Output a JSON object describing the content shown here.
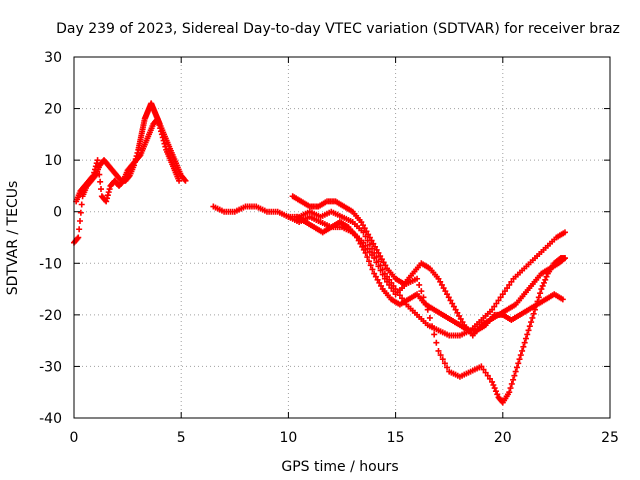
{
  "chart_data": {
    "type": "scatter",
    "title": "Day 239 of 2023, Sidereal Day-to-day VTEC variation (SDTVAR) for receiver braz",
    "xlabel": "GPS time / hours",
    "ylabel": "SDTVAR / TECUs",
    "xlim": [
      0,
      25
    ],
    "ylim": [
      -40,
      30
    ],
    "xticks": [
      0,
      5,
      10,
      15,
      20,
      25
    ],
    "yticks": [
      -40,
      -30,
      -20,
      -10,
      0,
      10,
      20,
      30
    ],
    "grid": true,
    "marker": "+",
    "color": "#ff0000",
    "series": [
      {
        "name": "s1",
        "x": [
          0,
          0.2,
          0.4,
          0.6,
          0.8,
          1.0,
          1.2,
          1.4,
          1.6,
          1.8,
          2.0,
          2.2,
          2.4,
          2.6,
          2.8,
          3.0,
          3.1,
          3.2,
          3.3,
          3.4,
          3.5,
          3.6,
          3.7,
          3.8,
          3.9,
          4.0,
          4.2,
          4.4,
          4.6,
          4.8,
          5.0,
          5.2
        ],
        "y": [
          -6,
          -5,
          3,
          5,
          6,
          7,
          9,
          10,
          9,
          8,
          7,
          6,
          6,
          7,
          9,
          12,
          14,
          16,
          18,
          19,
          20,
          21,
          20,
          19,
          18,
          17,
          15,
          13,
          11,
          9,
          7,
          6
        ]
      },
      {
        "name": "s2",
        "x": [
          0.1,
          0.3,
          0.5,
          0.7,
          0.9,
          1.1,
          1.3,
          1.5,
          1.7,
          1.9,
          2.1,
          2.3,
          2.5,
          2.7,
          2.9,
          3.1,
          3.3,
          3.5,
          3.7,
          3.9,
          4.1,
          4.3,
          4.5,
          4.7,
          4.9
        ],
        "y": [
          2,
          4,
          5,
          6,
          7,
          10,
          3,
          2,
          5,
          6,
          5,
          6,
          8,
          9,
          10,
          11,
          13,
          15,
          17,
          18,
          15,
          12,
          10,
          8,
          6
        ]
      },
      {
        "name": "s3",
        "x": [
          6.5,
          7,
          7.5,
          8,
          8.5,
          9,
          9.5,
          10,
          10.5,
          11,
          11.5,
          12,
          12.5,
          13,
          13.5,
          14,
          14.5,
          15,
          15.5,
          16,
          16.5,
          17,
          17.5,
          18,
          18.5,
          19,
          19.5,
          20,
          20.5,
          21,
          21.5,
          22,
          22.5,
          22.9
        ],
        "y": [
          1,
          0,
          0,
          1,
          1,
          0,
          0,
          -1,
          -1,
          0,
          -1,
          0,
          -1,
          -2,
          -4,
          -8,
          -12,
          -15,
          -18,
          -20,
          -22,
          -23,
          -24,
          -24,
          -23,
          -21,
          -19,
          -16,
          -13,
          -11,
          -9,
          -7,
          -5,
          -4
        ]
      },
      {
        "name": "s4",
        "x": [
          10.2,
          10.6,
          11,
          11.4,
          11.8,
          12.2,
          12.6,
          13,
          13.4,
          13.8,
          14.2,
          14.6,
          15,
          15.4,
          15.8,
          16.2,
          16.6,
          17,
          17.4,
          17.8,
          18.2,
          18.6,
          19,
          19.4,
          19.8,
          20.2,
          20.6,
          21,
          21.4,
          21.8,
          22.2,
          22.6,
          22.9
        ],
        "y": [
          3,
          2,
          1,
          1,
          2,
          2,
          1,
          0,
          -2,
          -5,
          -8,
          -11,
          -13,
          -14,
          -12,
          -10,
          -11,
          -13,
          -16,
          -19,
          -22,
          -24,
          -22,
          -21,
          -20,
          -19,
          -18,
          -16,
          -14,
          -12,
          -11,
          -10,
          -9
        ]
      },
      {
        "name": "s5",
        "x": [
          10.4,
          10.8,
          11.2,
          11.6,
          12,
          12.4,
          12.8,
          13.2,
          13.6,
          14,
          14.4,
          14.8,
          15.2,
          15.6,
          16,
          16.4,
          16.8,
          17.2,
          17.6,
          18,
          18.4,
          18.8,
          19.2,
          19.6,
          20,
          20.4,
          20.8,
          21.2,
          21.6,
          22,
          22.4,
          22.8
        ],
        "y": [
          -1,
          -2,
          -3,
          -4,
          -3,
          -2,
          -3,
          -5,
          -8,
          -12,
          -15,
          -17,
          -18,
          -17,
          -16,
          -18,
          -19,
          -20,
          -21,
          -22,
          -23,
          -23,
          -22,
          -20,
          -20,
          -21,
          -20,
          -19,
          -18,
          -17,
          -16,
          -17
        ]
      },
      {
        "name": "s6",
        "x": [
          10,
          10.5,
          11,
          11.5,
          12,
          12.5,
          13,
          13.5,
          14,
          14.5,
          15,
          15.5,
          16,
          16.5,
          17,
          17.5,
          18,
          18.5,
          19,
          19.5,
          19.8,
          20,
          20.3,
          20.6,
          20.9,
          21.2,
          21.5,
          21.8,
          22.1,
          22.4,
          22.7,
          22.9
        ],
        "y": [
          -1,
          -2,
          -1,
          -2,
          -3,
          -3,
          -4,
          -6,
          -9,
          -13,
          -16,
          -14,
          -13,
          -19,
          -27,
          -31,
          -32,
          -31,
          -30,
          -33,
          -36,
          -37,
          -35,
          -31,
          -27,
          -23,
          -19,
          -15,
          -12,
          -10,
          -9,
          -9
        ]
      }
    ]
  }
}
